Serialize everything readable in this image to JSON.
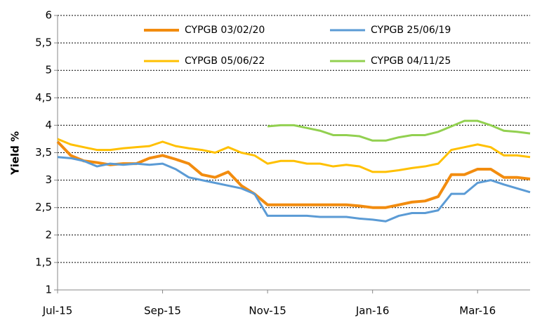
{
  "chart_data": {
    "type": "line",
    "y_label": "Yield %",
    "x": [
      0,
      1,
      2,
      3,
      4,
      5,
      6,
      7,
      8,
      9,
      10,
      11,
      12,
      13,
      14,
      15,
      16,
      17,
      18,
      19,
      20,
      21,
      22,
      23,
      24,
      25,
      26,
      27,
      28,
      29,
      30,
      31,
      32,
      33,
      34,
      35,
      36
    ],
    "xlim": [
      0,
      36
    ],
    "xticks": [
      {
        "value": 0,
        "label": "Jul-15"
      },
      {
        "value": 8,
        "label": "Sep-15"
      },
      {
        "value": 16,
        "label": "Nov-15"
      },
      {
        "value": 24,
        "label": "Jan-16"
      },
      {
        "value": 32,
        "label": "Mar-16"
      }
    ],
    "ylim": [
      1,
      6
    ],
    "yticks": [
      1,
      {
        "value": 1.5,
        "label": "1,5"
      },
      2,
      {
        "value": 2.5,
        "label": "2,5"
      },
      3,
      {
        "value": 3.5,
        "label": "3,5"
      },
      4,
      {
        "value": 4.5,
        "label": "4,5"
      },
      5,
      {
        "value": 5.5,
        "label": "5,5"
      },
      6
    ],
    "grid": true,
    "series": [
      {
        "name": "CYPGB 03/02/20",
        "color": "#f28c0f",
        "width": 4,
        "values": [
          3.7,
          3.45,
          3.35,
          3.32,
          3.28,
          3.3,
          3.3,
          3.4,
          3.45,
          3.38,
          3.3,
          3.1,
          3.05,
          3.15,
          2.9,
          2.75,
          2.55,
          2.55,
          2.55,
          2.55,
          2.55,
          2.55,
          2.55,
          2.53,
          2.5,
          2.5,
          2.55,
          2.6,
          2.62,
          2.7,
          3.1,
          3.1,
          3.2,
          3.2,
          3.05,
          3.05,
          3.02
        ]
      },
      {
        "name": "CYPGB 25/06/19",
        "color": "#5b9bd5",
        "width": 3,
        "values": [
          3.42,
          3.4,
          3.35,
          3.25,
          3.3,
          3.28,
          3.3,
          3.28,
          3.3,
          3.2,
          3.05,
          3.0,
          2.95,
          2.9,
          2.85,
          2.75,
          2.35,
          2.35,
          2.35,
          2.35,
          2.33,
          2.33,
          2.33,
          2.3,
          2.28,
          2.25,
          2.35,
          2.4,
          2.4,
          2.45,
          2.75,
          2.75,
          2.95,
          3.0,
          2.92,
          2.85,
          2.78
        ]
      },
      {
        "name": "CYPGB 05/06/22",
        "color": "#ffc000",
        "width": 3,
        "values": [
          3.75,
          3.65,
          3.6,
          3.55,
          3.55,
          3.58,
          3.6,
          3.62,
          3.7,
          3.62,
          3.58,
          3.55,
          3.5,
          3.6,
          3.5,
          3.45,
          3.3,
          3.35,
          3.35,
          3.3,
          3.3,
          3.25,
          3.28,
          3.25,
          3.15,
          3.15,
          3.18,
          3.22,
          3.25,
          3.3,
          3.55,
          3.6,
          3.65,
          3.6,
          3.45,
          3.45,
          3.42
        ]
      },
      {
        "name": "CYPGB 04/11/25",
        "color": "#92d050",
        "width": 3,
        "values": [
          null,
          null,
          null,
          null,
          null,
          null,
          null,
          null,
          null,
          null,
          null,
          null,
          null,
          null,
          null,
          null,
          3.98,
          4.0,
          4.0,
          3.95,
          3.9,
          3.82,
          3.82,
          3.8,
          3.72,
          3.72,
          3.78,
          3.82,
          3.82,
          3.88,
          3.98,
          4.08,
          4.08,
          4.0,
          3.9,
          3.88,
          3.85
        ]
      }
    ]
  }
}
